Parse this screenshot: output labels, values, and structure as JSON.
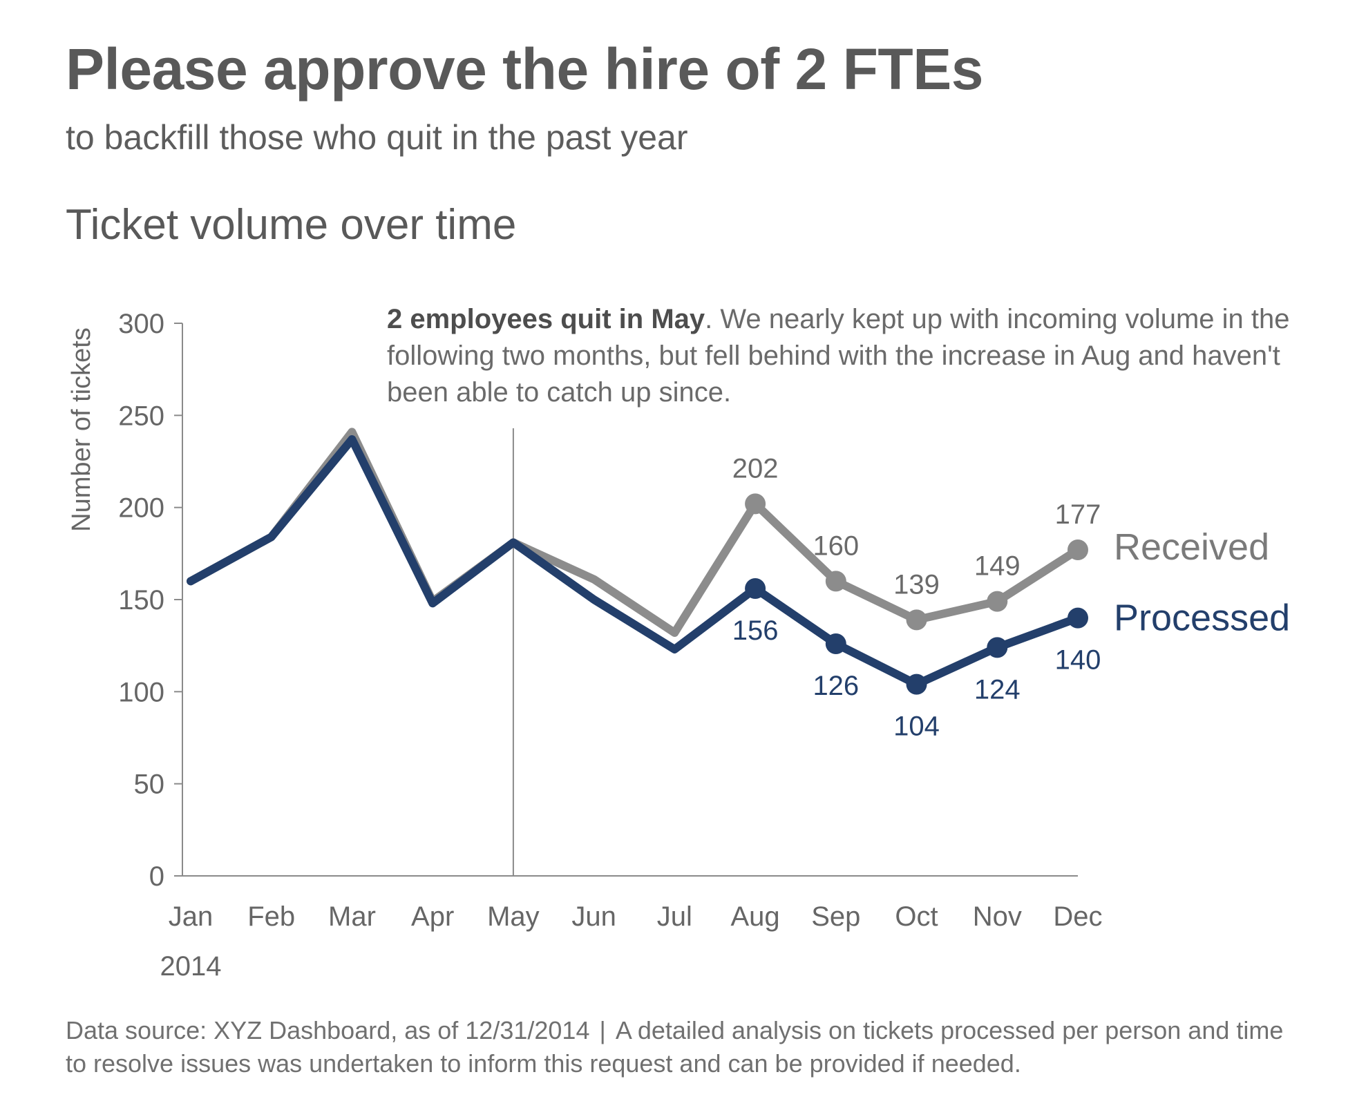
{
  "headline": "Please approve the hire of 2 FTEs",
  "subheadline": "to backfill those who quit in the past year",
  "annotation": {
    "bold": "2 employees quit in May",
    "rest": ". We nearly kept up with incoming volume in the following two months, but fell behind with the increase in Aug and haven't been able to catch up since."
  },
  "footer": {
    "source": "Data source: XYZ Dashboard, as of 12/31/2014",
    "separator": "|",
    "note": "A detailed analysis on tickets processed per person and time to resolve issues was undertaken to inform this request and can be provided if needed."
  },
  "colors": {
    "received": "#8c8c8c",
    "processed": "#233f6b",
    "axis": "#8a8a8a",
    "tick_text": "#666666",
    "reference_line": "#8a8a8a"
  },
  "chart_data": {
    "type": "line",
    "title": "Ticket volume over time",
    "ylabel": "Number of tickets",
    "xlabel": "",
    "year_label": "2014",
    "categories": [
      "Jan",
      "Feb",
      "Mar",
      "Apr",
      "May",
      "Jun",
      "Jul",
      "Aug",
      "Sep",
      "Oct",
      "Nov",
      "Dec"
    ],
    "ylim": [
      0,
      300
    ],
    "yticks": [
      0,
      50,
      100,
      150,
      200,
      250,
      300
    ],
    "grid": false,
    "legend": "direct labels at right end of lines",
    "reference_line_category": "May",
    "labeled_from_category": "Aug",
    "series": [
      {
        "name": "Received",
        "color": "#8c8c8c",
        "values": [
          160,
          184,
          241,
          149,
          181,
          161,
          132,
          202,
          160,
          139,
          149,
          177
        ]
      },
      {
        "name": "Processed",
        "color": "#233f6b",
        "values": [
          160,
          184,
          237,
          148,
          181,
          150,
          123,
          156,
          126,
          104,
          124,
          140
        ]
      }
    ]
  }
}
